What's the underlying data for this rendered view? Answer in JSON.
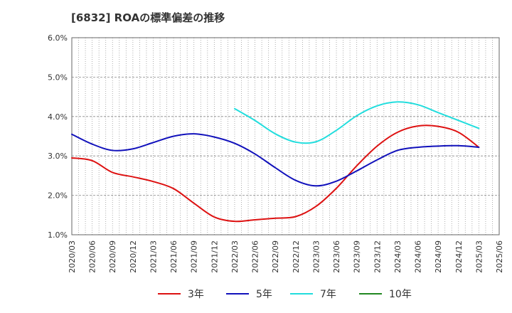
{
  "chart_data": {
    "type": "line",
    "title": "[6832]  ROAの標準偏差の推移",
    "xlabel": "",
    "ylabel": "",
    "x": [
      "2020/03",
      "2020/06",
      "2020/09",
      "2020/12",
      "2021/03",
      "2021/06",
      "2021/09",
      "2021/12",
      "2022/03",
      "2022/06",
      "2022/09",
      "2022/12",
      "2023/03",
      "2023/06",
      "2023/09",
      "2023/12",
      "2024/03",
      "2024/06",
      "2024/09",
      "2024/12",
      "2025/03",
      "2025/06"
    ],
    "ylim": [
      1.0,
      6.0
    ],
    "yticks": [
      1.0,
      2.0,
      3.0,
      4.0,
      5.0,
      6.0
    ],
    "ytick_labels": [
      "1.0%",
      "2.0%",
      "3.0%",
      "4.0%",
      "5.0%",
      "6.0%"
    ],
    "grid": true,
    "legend_position": "bottom",
    "series": [
      {
        "name": "3年",
        "color": "#dd1111",
        "values": [
          2.95,
          2.88,
          2.58,
          2.47,
          2.35,
          2.17,
          1.8,
          1.45,
          1.34,
          1.38,
          1.42,
          1.46,
          1.72,
          2.18,
          2.75,
          3.25,
          3.6,
          3.76,
          3.75,
          3.6,
          3.22,
          null
        ]
      },
      {
        "name": "5年",
        "color": "#1111bb",
        "values": [
          3.55,
          3.3,
          3.14,
          3.18,
          3.34,
          3.5,
          3.56,
          3.48,
          3.32,
          3.05,
          2.7,
          2.38,
          2.24,
          2.36,
          2.62,
          2.9,
          3.14,
          3.22,
          3.25,
          3.26,
          3.22,
          null
        ]
      },
      {
        "name": "7年",
        "color": "#22dddd",
        "values": [
          null,
          null,
          null,
          null,
          null,
          null,
          null,
          null,
          4.2,
          3.9,
          3.56,
          3.35,
          3.36,
          3.65,
          4.02,
          4.27,
          4.37,
          4.3,
          4.1,
          3.9,
          3.7,
          null
        ]
      },
      {
        "name": "10年",
        "color": "#228822",
        "values": [
          null,
          null,
          null,
          null,
          null,
          null,
          null,
          null,
          null,
          null,
          null,
          null,
          null,
          null,
          null,
          null,
          null,
          null,
          null,
          null,
          null,
          null
        ]
      }
    ]
  }
}
